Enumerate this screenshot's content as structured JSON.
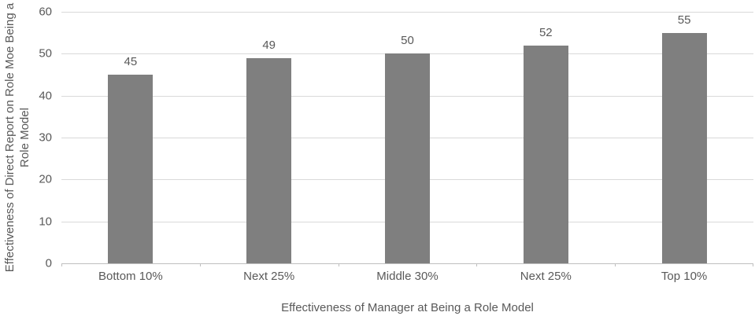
{
  "chart_data": {
    "type": "bar",
    "categories": [
      "Bottom 10%",
      "Next 25%",
      "Middle 30%",
      "Next 25%",
      "Top 10%"
    ],
    "values": [
      45,
      49,
      50,
      52,
      55
    ],
    "data_labels": [
      "45",
      "49",
      "50",
      "52",
      "55"
    ],
    "xlabel": "Effectiveness of Manager at Being a Role Model",
    "ylabel": "Effectiveness of Direct Report on Role Moe Being a Role Model",
    "ylabel_lines": [
      "Effectiveness of Direct Report on Role Moe Being a",
      "Role Model"
    ],
    "yticks": [
      0,
      10,
      20,
      30,
      40,
      50,
      60
    ],
    "ylim": [
      0,
      60
    ],
    "grid": true,
    "legend": "none",
    "bar_color": "#7f7f7f",
    "gridline_color": "#d9d9d9",
    "axis_line_color": "#bfbfbf",
    "text_color": "#595959"
  }
}
